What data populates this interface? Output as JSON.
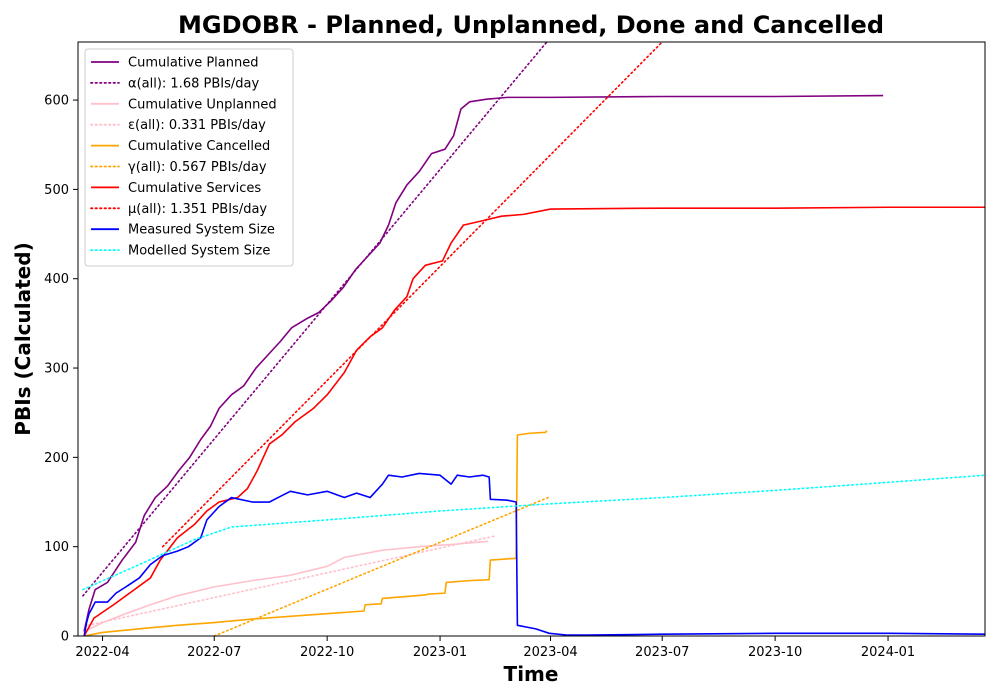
{
  "chart_data": {
    "type": "line",
    "title": "MGDOBR - Planned, Unplanned, Done  and Cancelled",
    "xlabel": "Time",
    "ylabel": "PBIs (Calculated)",
    "xlim": [
      "2022-03-12",
      "2024-03-20"
    ],
    "ylim": [
      0,
      665
    ],
    "x_ticks": [
      "2022-04-01",
      "2022-07-01",
      "2022-10-01",
      "2023-01-01",
      "2023-04-01",
      "2023-07-01",
      "2023-10-01",
      "2024-01-01"
    ],
    "x_tick_labels": [
      "2022-04",
      "2022-07",
      "2022-10",
      "2023-01",
      "2023-04",
      "2023-07",
      "2023-10",
      "2024-01"
    ],
    "y_ticks": [
      0,
      100,
      200,
      300,
      400,
      500,
      600
    ],
    "grid": false,
    "legend_position": "upper-left",
    "series": [
      {
        "name": "Cumulative Planned",
        "color": "#800080",
        "style": "solid",
        "points": [
          [
            "2022-03-17",
            5
          ],
          [
            "2022-03-21",
            30
          ],
          [
            "2022-03-26",
            52
          ],
          [
            "2022-04-05",
            60
          ],
          [
            "2022-04-17",
            85
          ],
          [
            "2022-04-28",
            105
          ],
          [
            "2022-05-05",
            135
          ],
          [
            "2022-05-14",
            155
          ],
          [
            "2022-05-24",
            168
          ],
          [
            "2022-06-02",
            185
          ],
          [
            "2022-06-11",
            200
          ],
          [
            "2022-06-20",
            220
          ],
          [
            "2022-06-28",
            235
          ],
          [
            "2022-07-05",
            255
          ],
          [
            "2022-07-15",
            270
          ],
          [
            "2022-07-25",
            280
          ],
          [
            "2022-08-04",
            300
          ],
          [
            "2022-08-14",
            315
          ],
          [
            "2022-08-24",
            330
          ],
          [
            "2022-09-02",
            345
          ],
          [
            "2022-09-14",
            355
          ],
          [
            "2022-09-24",
            362
          ],
          [
            "2022-10-04",
            375
          ],
          [
            "2022-10-14",
            390
          ],
          [
            "2022-10-24",
            410
          ],
          [
            "2022-11-03",
            425
          ],
          [
            "2022-11-13",
            440
          ],
          [
            "2022-11-20",
            460
          ],
          [
            "2022-11-26",
            485
          ],
          [
            "2022-12-05",
            505
          ],
          [
            "2022-12-15",
            520
          ],
          [
            "2022-12-25",
            540
          ],
          [
            "2023-01-05",
            545
          ],
          [
            "2023-01-12",
            560
          ],
          [
            "2023-01-18",
            590
          ],
          [
            "2023-01-25",
            598
          ],
          [
            "2023-02-08",
            601
          ],
          [
            "2023-02-25",
            603
          ],
          [
            "2023-04-01",
            603
          ],
          [
            "2023-07-01",
            604
          ],
          [
            "2023-10-01",
            604
          ],
          [
            "2023-12-28",
            605
          ]
        ]
      },
      {
        "name": "α(all): 1.68 PBIs/day",
        "color": "#800080",
        "style": "dotted",
        "points": [
          [
            "2022-03-16",
            45
          ],
          [
            "2023-03-29",
            665
          ]
        ]
      },
      {
        "name": "Cumulative Unplanned",
        "color": "#ffc0cb",
        "style": "solid",
        "points": [
          [
            "2022-03-17",
            5
          ],
          [
            "2022-04-01",
            15
          ],
          [
            "2022-04-20",
            25
          ],
          [
            "2022-05-10",
            35
          ],
          [
            "2022-06-01",
            45
          ],
          [
            "2022-07-01",
            55
          ],
          [
            "2022-08-01",
            62
          ],
          [
            "2022-09-01",
            68
          ],
          [
            "2022-10-01",
            78
          ],
          [
            "2022-10-15",
            88
          ],
          [
            "2022-11-15",
            96
          ],
          [
            "2022-12-15",
            100
          ],
          [
            "2023-01-15",
            103
          ],
          [
            "2023-02-09",
            106
          ]
        ]
      },
      {
        "name": "ε(all): 0.331 PBIs/day",
        "color": "#ffc0cb",
        "style": "dotted",
        "points": [
          [
            "2022-03-20",
            12
          ],
          [
            "2023-02-15",
            112
          ]
        ]
      },
      {
        "name": "Cumulative Cancelled",
        "color": "#ffa500",
        "style": "solid",
        "points": [
          [
            "2022-03-17",
            0
          ],
          [
            "2022-04-01",
            4
          ],
          [
            "2022-05-01",
            8
          ],
          [
            "2022-06-01",
            12
          ],
          [
            "2022-07-01",
            15
          ],
          [
            "2022-08-01",
            19
          ],
          [
            "2022-09-01",
            22
          ],
          [
            "2022-10-01",
            25
          ],
          [
            "2022-10-31",
            28
          ],
          [
            "2022-11-01",
            35
          ],
          [
            "2022-11-14",
            36
          ],
          [
            "2022-11-15",
            42
          ],
          [
            "2022-12-20",
            46
          ],
          [
            "2022-12-23",
            47
          ],
          [
            "2023-01-05",
            48
          ],
          [
            "2023-01-06",
            60
          ],
          [
            "2023-01-25",
            62
          ],
          [
            "2023-02-10",
            63
          ],
          [
            "2023-02-11",
            85
          ],
          [
            "2023-03-04",
            87
          ],
          [
            "2023-03-05",
            225
          ],
          [
            "2023-03-10",
            226
          ],
          [
            "2023-03-15",
            227
          ],
          [
            "2023-03-28",
            228
          ],
          [
            "2023-03-29",
            230
          ]
        ]
      },
      {
        "name": "γ(all): 0.567 PBIs/day",
        "color": "#ffa500",
        "style": "dotted",
        "points": [
          [
            "2022-07-01",
            0
          ],
          [
            "2023-03-30",
            155
          ]
        ]
      },
      {
        "name": "Cumulative Services",
        "color": "#ff0000",
        "style": "solid",
        "points": [
          [
            "2022-03-17",
            0
          ],
          [
            "2022-03-25",
            20
          ],
          [
            "2022-04-10",
            35
          ],
          [
            "2022-04-25",
            50
          ],
          [
            "2022-05-10",
            65
          ],
          [
            "2022-05-18",
            85
          ],
          [
            "2022-06-01",
            110
          ],
          [
            "2022-06-15",
            125
          ],
          [
            "2022-06-25",
            140
          ],
          [
            "2022-07-05",
            150
          ],
          [
            "2022-07-20",
            155
          ],
          [
            "2022-07-28",
            165
          ],
          [
            "2022-08-05",
            185
          ],
          [
            "2022-08-15",
            215
          ],
          [
            "2022-08-25",
            225
          ],
          [
            "2022-09-05",
            240
          ],
          [
            "2022-09-20",
            255
          ],
          [
            "2022-10-01",
            270
          ],
          [
            "2022-10-15",
            295
          ],
          [
            "2022-10-25",
            320
          ],
          [
            "2022-11-05",
            335
          ],
          [
            "2022-11-15",
            345
          ],
          [
            "2022-11-25",
            365
          ],
          [
            "2022-12-05",
            380
          ],
          [
            "2022-12-10",
            400
          ],
          [
            "2022-12-20",
            415
          ],
          [
            "2023-01-03",
            420
          ],
          [
            "2023-01-10",
            440
          ],
          [
            "2023-01-20",
            460
          ],
          [
            "2023-02-05",
            465
          ],
          [
            "2023-02-20",
            470
          ],
          [
            "2023-03-10",
            472
          ],
          [
            "2023-04-01",
            478
          ],
          [
            "2023-07-01",
            479
          ],
          [
            "2023-10-01",
            479
          ],
          [
            "2024-01-01",
            480
          ],
          [
            "2024-03-20",
            480
          ]
        ]
      },
      {
        "name": "μ(all): 1.351 PBIs/day",
        "color": "#ff0000",
        "style": "dotted",
        "points": [
          [
            "2022-05-20",
            100
          ],
          [
            "2023-07-01",
            665
          ]
        ]
      },
      {
        "name": "Measured System Size",
        "color": "#0000ff",
        "style": "solid",
        "points": [
          [
            "2022-03-17",
            0
          ],
          [
            "2022-03-19",
            15
          ],
          [
            "2022-03-21",
            25
          ],
          [
            "2022-03-23",
            30
          ],
          [
            "2022-03-26",
            38
          ],
          [
            "2022-04-05",
            38
          ],
          [
            "2022-04-12",
            48
          ],
          [
            "2022-04-20",
            55
          ],
          [
            "2022-05-01",
            65
          ],
          [
            "2022-05-10",
            80
          ],
          [
            "2022-05-20",
            90
          ],
          [
            "2022-06-01",
            95
          ],
          [
            "2022-06-10",
            100
          ],
          [
            "2022-06-20",
            110
          ],
          [
            "2022-06-25",
            130
          ],
          [
            "2022-07-05",
            145
          ],
          [
            "2022-07-15",
            155
          ],
          [
            "2022-08-01",
            150
          ],
          [
            "2022-08-15",
            150
          ],
          [
            "2022-08-22",
            155
          ],
          [
            "2022-09-01",
            162
          ],
          [
            "2022-09-15",
            158
          ],
          [
            "2022-10-01",
            162
          ],
          [
            "2022-10-15",
            155
          ],
          [
            "2022-10-25",
            160
          ],
          [
            "2022-11-05",
            155
          ],
          [
            "2022-11-15",
            170
          ],
          [
            "2022-11-20",
            180
          ],
          [
            "2022-12-01",
            178
          ],
          [
            "2022-12-15",
            182
          ],
          [
            "2023-01-01",
            180
          ],
          [
            "2023-01-10",
            170
          ],
          [
            "2023-01-15",
            180
          ],
          [
            "2023-01-25",
            178
          ],
          [
            "2023-02-05",
            180
          ],
          [
            "2023-02-10",
            178
          ],
          [
            "2023-02-11",
            153
          ],
          [
            "2023-02-25",
            152
          ],
          [
            "2023-03-04",
            150
          ],
          [
            "2023-03-05",
            12
          ],
          [
            "2023-03-20",
            8
          ],
          [
            "2023-03-31",
            3
          ],
          [
            "2023-04-15",
            1
          ],
          [
            "2023-05-01",
            1
          ],
          [
            "2023-07-01",
            2
          ],
          [
            "2023-10-01",
            3
          ],
          [
            "2024-01-01",
            3
          ],
          [
            "2024-03-20",
            2
          ]
        ]
      },
      {
        "name": "Modelled System Size",
        "color": "#00ffff",
        "style": "dotted",
        "points": [
          [
            "2022-03-16",
            52
          ],
          [
            "2022-05-01",
            80
          ],
          [
            "2022-06-15",
            108
          ],
          [
            "2022-07-15",
            122
          ],
          [
            "2022-10-01",
            130
          ],
          [
            "2023-01-01",
            140
          ],
          [
            "2023-04-01",
            148
          ],
          [
            "2023-07-01",
            155
          ],
          [
            "2023-10-01",
            163
          ],
          [
            "2024-01-01",
            172
          ],
          [
            "2024-03-20",
            180
          ]
        ]
      }
    ]
  }
}
